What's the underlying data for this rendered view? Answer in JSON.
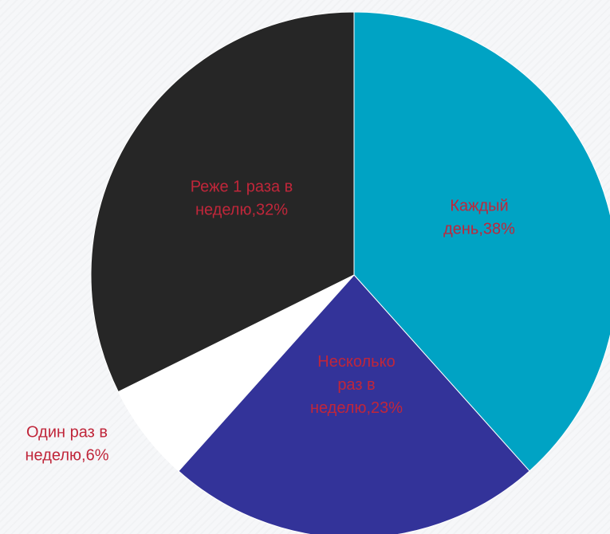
{
  "chart_data": {
    "type": "pie",
    "title": "",
    "slices": [
      {
        "label_lines": [
          "Каждый",
          "день,38%"
        ],
        "value": 38,
        "color": "#00a3c4",
        "label_color": "#c0263a"
      },
      {
        "label_lines": [
          "Несколько",
          "раз в",
          "неделю,23%"
        ],
        "value": 23,
        "color": "#333399",
        "label_color": "#c0263a"
      },
      {
        "label_lines": [
          "Один раз в",
          "неделю,6%"
        ],
        "value": 6,
        "color": "#ffffff",
        "label_color": "#c0263a"
      },
      {
        "label_lines": [
          "Реже 1 раза в",
          "неделю,32%"
        ],
        "value": 32,
        "color": "#262626",
        "label_color": "#c0263a"
      }
    ],
    "legend": "none"
  }
}
